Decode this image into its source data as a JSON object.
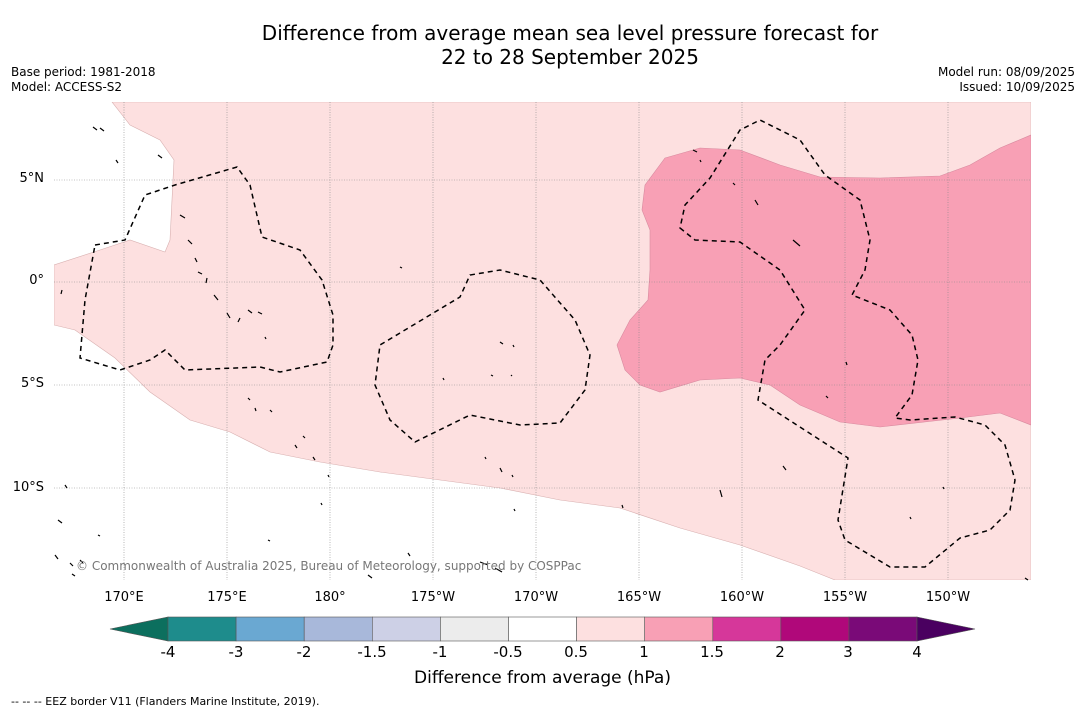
{
  "title": {
    "line1": "Difference from average mean sea level pressure forecast for",
    "line2": "22 to 28 September 2025"
  },
  "meta_left": {
    "base_period": "Base period: 1981-2018",
    "model": "Model: ACCESS-S2"
  },
  "meta_right": {
    "model_run": "Model run: 08/09/2025",
    "issued": "Issued: 10/09/2025"
  },
  "lat_labels": [
    "5°N",
    "0°",
    "5°S",
    "10°S"
  ],
  "lon_labels": [
    "170°E",
    "175°E",
    "180°",
    "175°W",
    "170°W",
    "165°W",
    "160°W",
    "155°W",
    "150°W"
  ],
  "copyright": "© Commonwealth of Australia 2025, Bureau of Meteorology, supported by COSPPac",
  "colorbar": {
    "ticks": [
      "-4",
      "-3",
      "-2",
      "-1.5",
      "-1",
      "-0.5",
      "0.5",
      "1",
      "1.5",
      "2",
      "3",
      "4"
    ],
    "colors": [
      "#1e8c8c",
      "#6aa8d2",
      "#a8b8da",
      "#cdd0e6",
      "#ececec",
      "#ffffff",
      "#fde0e0",
      "#f8a0b5",
      "#d6379a",
      "#b0087a",
      "#7a0a78"
    ],
    "under_color": "#0c6f5e",
    "over_color": "#4a0060",
    "label": "Difference from average (hPa)"
  },
  "legend_note": "--  --  -- EEZ border V11 (Flanders Marine Institute, 2019)."
}
